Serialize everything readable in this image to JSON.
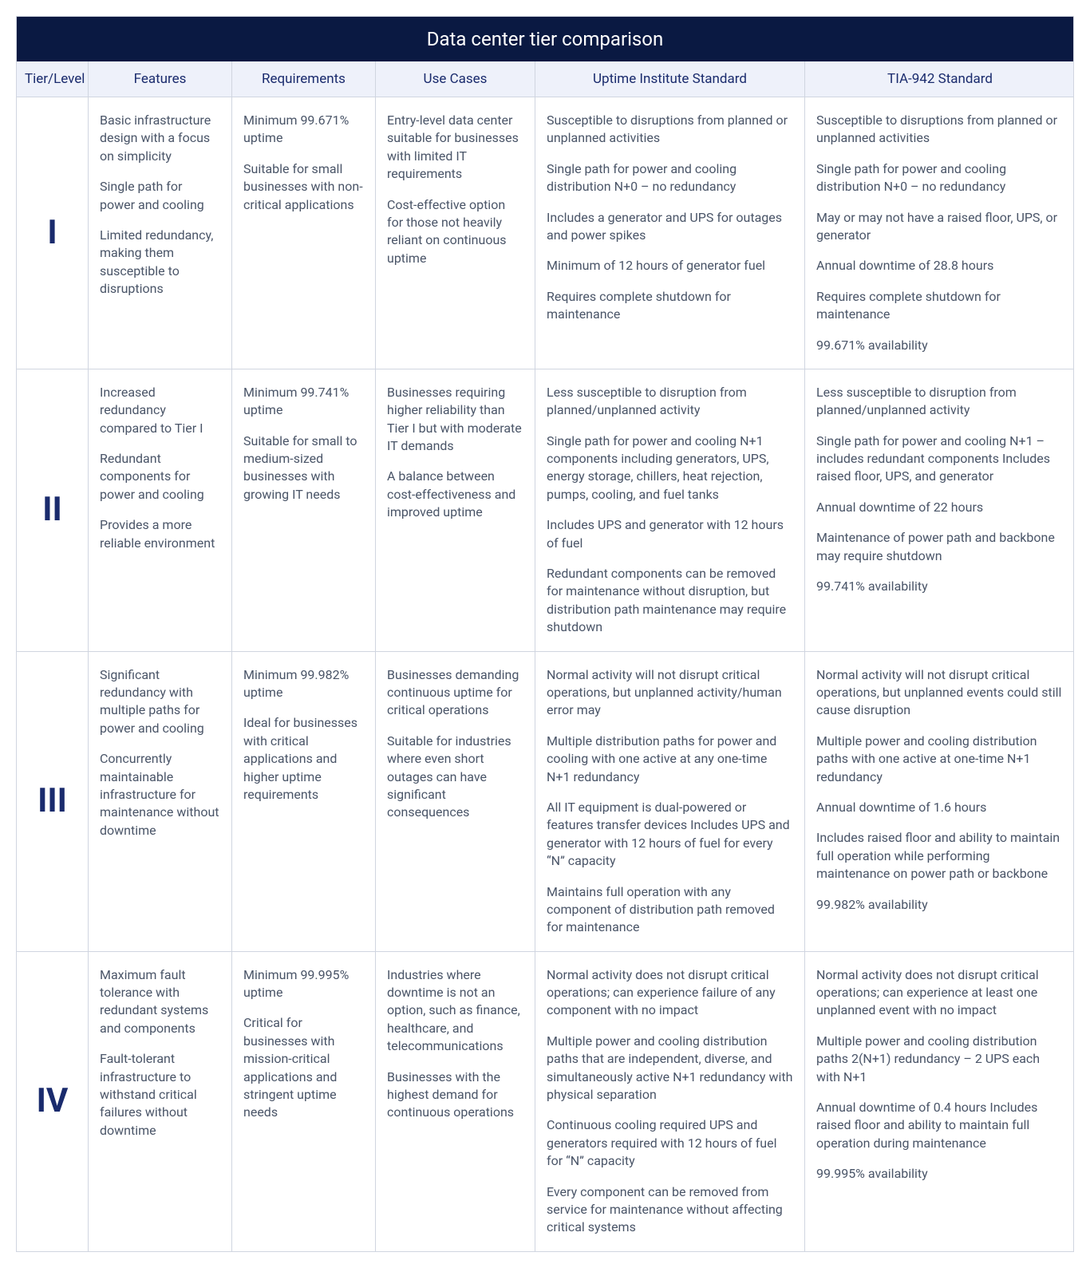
{
  "title": "Data center tier comparison",
  "colors": {
    "header_bg": "#0a1942",
    "header_text": "#ffffff",
    "subhead_bg": "#eef1fa",
    "subhead_text": "#1a2b6d",
    "border": "#d0d5e0",
    "body_text": "#4a5568",
    "tier_text": "#1a2b6d"
  },
  "columns": [
    "Tier/Level",
    "Features",
    "Requirements",
    "Use Cases",
    "Uptime Institute Standard",
    "TIA-942 Standard"
  ],
  "rows": [
    {
      "tier": "I",
      "features": [
        "Basic infrastructure design with a focus on simplicity",
        "Single path for power and cooling",
        "Limited redundancy, making them susceptible to disruptions"
      ],
      "requirements": [
        "Minimum 99.671% uptime",
        "Suitable for small businesses with non-critical applications"
      ],
      "use_cases": [
        "Entry-level data center suitable for businesses with limited IT requirements",
        "Cost-effective option for those not heavily reliant on continuous uptime"
      ],
      "uptime_std": [
        "Susceptible to disruptions from planned or unplanned activities",
        "Single path for power and cooling distribution N+0 – no redundancy",
        "Includes a generator and UPS for outages and power spikes",
        "Minimum of 12 hours of generator fuel",
        "Requires complete shutdown for maintenance"
      ],
      "tia_std": [
        "Susceptible to disruptions from planned or unplanned activities",
        "Single path for power and cooling distribution N+0 – no redundancy",
        "May or may not have a raised floor, UPS, or generator",
        "Annual downtime of 28.8 hours",
        "Requires complete shutdown for maintenance",
        "99.671% availability"
      ]
    },
    {
      "tier": "II",
      "features": [
        "Increased redundancy compared to Tier I",
        "Redundant components for power and cooling",
        "Provides a more reliable environment"
      ],
      "requirements": [
        "Minimum 99.741% uptime",
        "Suitable for small to medium-sized businesses with growing IT needs"
      ],
      "use_cases": [
        "Businesses requiring higher reliability than Tier I but with moderate IT demands",
        "A balance between cost-effectiveness and improved uptime"
      ],
      "uptime_std": [
        "Less susceptible to disruption from planned/unplanned activity",
        "Single path for power and cooling N+1 components including generators, UPS, energy storage, chillers, heat rejection, pumps, cooling, and fuel tanks",
        "Includes UPS and generator with 12 hours of fuel",
        "Redundant components can be removed for maintenance without disruption, but distribution path maintenance may require shutdown"
      ],
      "tia_std": [
        "Less susceptible to disruption from planned/unplanned activity",
        "Single path for power and cooling N+1 – includes redundant components Includes raised floor, UPS, and generator",
        "Annual downtime of 22 hours",
        "Maintenance of power path and backbone may require shutdown",
        "99.741% availability"
      ]
    },
    {
      "tier": "III",
      "features": [
        "Significant redundancy with multiple paths for power and cooling",
        "Concurrently maintainable infrastructure for maintenance without downtime"
      ],
      "requirements": [
        "Minimum 99.982% uptime",
        "Ideal for businesses with critical applications and higher uptime requirements"
      ],
      "use_cases": [
        "Businesses demanding continuous uptime for critical operations",
        "Suitable for industries where even short outages can have significant consequences"
      ],
      "uptime_std": [
        "Normal activity will not disrupt critical operations, but unplanned activity/human error may",
        "Multiple distribution paths for power and cooling with one active at any one-time N+1 redundancy",
        "All IT equipment is dual-powered or features transfer devices Includes UPS and generator with 12 hours of fuel for every “N” capacity",
        "Maintains full operation with any component of distribution path removed for maintenance"
      ],
      "tia_std": [
        "Normal activity will not disrupt critical operations, but unplanned events could still cause disruption",
        "Multiple power and cooling distribution paths with one active at one-time N+1 redundancy",
        "Annual downtime of 1.6 hours",
        "Includes raised floor and ability to maintain full operation while performing maintenance on power path or backbone",
        "99.982% availability"
      ]
    },
    {
      "tier": "IV",
      "features": [
        "Maximum fault tolerance with redundant systems and components",
        "Fault-tolerant infrastructure to withstand critical failures without downtime"
      ],
      "requirements": [
        "Minimum 99.995% uptime",
        "Critical for businesses with mission-critical applications and stringent uptime needs"
      ],
      "use_cases": [
        "Industries where downtime is not an option, such as finance, healthcare, and telecommunications",
        "Businesses with the highest demand for continuous operations"
      ],
      "uptime_std": [
        "Normal activity does not disrupt critical operations; can experience failure of any component with no impact",
        "Multiple power and cooling distribution paths that are independent, diverse, and simultaneously active N+1 redundancy with physical separation",
        "Continuous cooling required UPS and generators required with 12 hours of fuel for “N” capacity",
        "Every component can be removed from service for maintenance without affecting critical systems"
      ],
      "tia_std": [
        "Normal activity does not disrupt critical operations; can experience at least one unplanned event with no impact",
        "Multiple power and cooling distribution paths 2(N+1) redundancy – 2 UPS each with N+1",
        "Annual downtime of 0.4 hours Includes raised floor and ability to maintain full operation during maintenance",
        "99.995% availability"
      ]
    }
  ]
}
